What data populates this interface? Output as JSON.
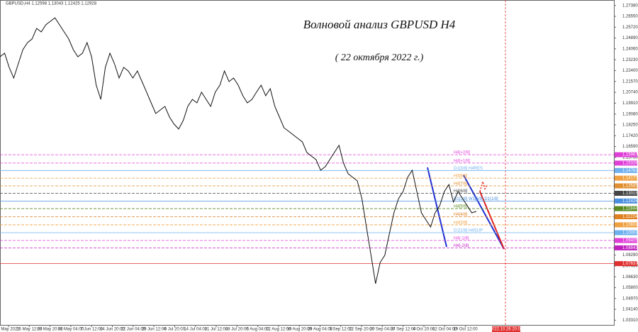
{
  "header": {
    "symbol_info": "GBPUSD,H4  1.12598 1.13043 1.12425 1.12928"
  },
  "chart_data": {
    "type": "line",
    "title": "Волновой анализ GBPUSD H4",
    "subtitle": "( 22 октября 2022 г.)",
    "x_labels": [
      "9 May 2022",
      "16 May 12:00",
      "23 May 20:00",
      "31 May 04:00",
      "7 Jun 12:00",
      "14 Jun 20:00",
      "22 Jun 04:00",
      "29 Jun 12:00",
      "6 Jul 20:00",
      "14 Jul 04:00",
      "21 Jul 12:00",
      "28 Jul 20:00",
      "5 Aug 04:00",
      "12 Aug 12:00",
      "19 Aug 20:00",
      "29 Aug 04:00",
      "5 Sep 12:00",
      "12 Sep 20:00",
      "20 Sep 04:00",
      "27 Sep 12:00",
      "4 Oct 20:00",
      "12 Oct 04:00",
      "19 Oct 12:00"
    ],
    "current_time_label": "2022.10.26 20:00",
    "color": "#111111",
    "values": [
      1.2346,
      1.2373,
      1.2265,
      1.2183,
      1.2292,
      1.24,
      1.2454,
      1.2482,
      1.2563,
      1.2536,
      1.259,
      1.2617,
      1.2644,
      1.259,
      1.2536,
      1.2482,
      1.24,
      1.2346,
      1.2373,
      1.2454,
      1.2346,
      1.2129,
      1.202,
      1.2265,
      1.2373,
      1.2292,
      1.2183,
      1.2265,
      1.2237,
      1.2183,
      1.2237,
      1.2156,
      1.2075,
      1.1993,
      1.1912,
      1.1939,
      1.1966,
      1.1885,
      1.1831,
      1.1793,
      1.1858,
      1.1966,
      1.202,
      1.1993,
      1.2075,
      1.202,
      1.1966,
      1.2075,
      1.2129,
      1.2237,
      1.2156,
      1.2183,
      1.2129,
      1.2048,
      1.1993,
      1.202,
      1.2075,
      1.2129,
      1.2048,
      1.2102,
      1.1966,
      1.1885,
      1.1803,
      1.1776,
      1.1749,
      1.1722,
      1.1695,
      1.1614,
      1.1586,
      1.1559,
      1.1478,
      1.1505,
      1.1559,
      1.1614,
      1.1668,
      1.1532,
      1.1451,
      1.1424,
      1.1397,
      1.1261,
      1.1044,
      1.0827,
      1.061,
      1.0773,
      1.0827,
      1.099,
      1.1152,
      1.1261,
      1.1315,
      1.1424,
      1.1478,
      1.1315,
      1.1152,
      1.1098,
      1.1044,
      1.1152,
      1.1207,
      1.1315,
      1.1369,
      1.1234,
      1.1315,
      1.1261,
      1.1207,
      1.1152,
      1.1163
    ],
    "ylim": [
      1.0295,
      1.278
    ],
    "yticks": [
      {
        "value": 1.2738,
        "label": "1.27380"
      },
      {
        "value": 1.2655,
        "label": "1.26550"
      },
      {
        "value": 1.2572,
        "label": "1.25720"
      },
      {
        "value": 1.2489,
        "label": "1.24890"
      },
      {
        "value": 1.2406,
        "label": "1.24060"
      },
      {
        "value": 1.2323,
        "label": "1.23230"
      },
      {
        "value": 1.224,
        "label": "1.22400"
      },
      {
        "value": 1.2157,
        "label": "1.21570"
      },
      {
        "value": 1.2074,
        "label": "1.20740"
      },
      {
        "value": 1.1991,
        "label": "1.19910"
      },
      {
        "value": 1.1908,
        "label": "1.19080"
      },
      {
        "value": 1.1825,
        "label": "1.18250"
      },
      {
        "value": 1.1742,
        "label": "1.17420"
      },
      {
        "value": 1.1659,
        "label": "1.16590"
      },
      {
        "value": 1.1576,
        "label": "1.15760"
      },
      {
        "value": 1.0829,
        "label": "1.08290"
      },
      {
        "value": 1.0746,
        "label": "1.07460"
      },
      {
        "value": 1.0663,
        "label": "1.06630"
      },
      {
        "value": 1.058,
        "label": "1.05800"
      },
      {
        "value": 1.0497,
        "label": "1.04970"
      },
      {
        "value": 1.0414,
        "label": "1.04140"
      },
      {
        "value": 1.0331,
        "label": "1.03310"
      }
    ],
    "levels": [
      {
        "value": 1.15967,
        "label": "H4[+2/8]",
        "color": "#e040d8",
        "dash": true
      },
      {
        "value": 1.15326,
        "label": "H4[+1/8]",
        "color": "#e040d8",
        "dash": true
      },
      {
        "value": 1.14761,
        "label": "D1[3/8] H4RES",
        "color": "#6fb0ee",
        "dash": false
      },
      {
        "value": 1.14173,
        "label": "H4[8/8]",
        "color": "#f0a040",
        "dash": true
      },
      {
        "value": 1.13585,
        "label": "H4[7/8]",
        "color": "#e09030",
        "dash": true
      },
      {
        "value": 1.13015,
        "label": "H4[6/8]",
        "color": "#444444",
        "dash": true
      },
      {
        "value": 1.12426,
        "label": "D1[2/8] W1[6/8] D1[1/8]",
        "color": "#4a8fe0",
        "dash": false
      },
      {
        "value": 1.11844,
        "label": "H4[5/8]",
        "color": "#5a8a20",
        "dash": true
      },
      {
        "value": 1.11224,
        "label": "H4[4/8]",
        "color": "#e08020",
        "dash": true
      },
      {
        "value": 1.10604,
        "label": "H4[3/8]",
        "color": "#f0a040",
        "dash": true
      },
      {
        "value": 1.10003,
        "label": "D1[1/8] H4SUP",
        "color": "#6fb0ee",
        "dash": false
      },
      {
        "value": 1.09405,
        "label": "H4[-1/8]",
        "color": "#e040d8",
        "dash": true
      },
      {
        "value": 1.08843,
        "label": "H4[-2/8]",
        "color": "#c020c0",
        "dash": true
      },
      {
        "value": 1.07637,
        "label": "",
        "color": "#e03030",
        "dash": false
      }
    ]
  }
}
